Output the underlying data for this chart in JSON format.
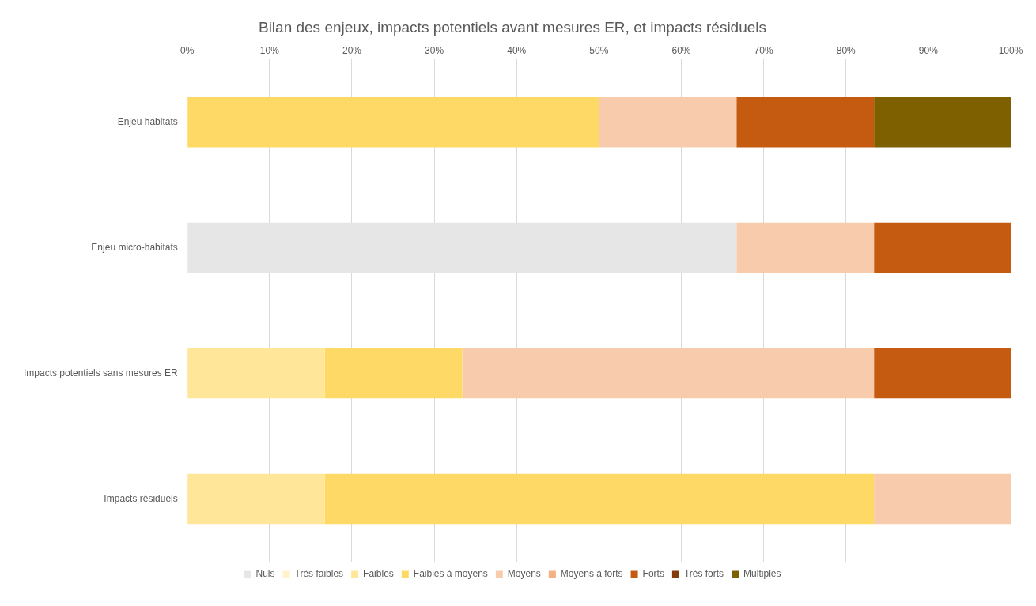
{
  "chart_data": {
    "type": "bar",
    "orientation": "horizontal",
    "stacked": true,
    "title": "Bilan des enjeux, impacts potentiels avant mesures ER, et impacts résiduels",
    "categories": [
      "Enjeu habitats",
      "Enjeu micro-habitats",
      "Impacts potentiels sans mesures ER",
      "Impacts résiduels"
    ],
    "series": [
      {
        "name": "Nuls",
        "color": "#e7e6e6",
        "values": [
          null,
          66.7,
          null,
          null
        ]
      },
      {
        "name": "Très faibles",
        "color": "#fff2cc",
        "values": [
          null,
          null,
          null,
          null
        ]
      },
      {
        "name": "Faibles",
        "color": "#ffe699",
        "values": [
          null,
          null,
          16.7,
          16.7
        ]
      },
      {
        "name": "Faibles à moyens",
        "color": "#ffd966",
        "values": [
          50,
          null,
          16.7,
          66.7
        ]
      },
      {
        "name": "Moyens",
        "color": "#f8cbad",
        "values": [
          16.7,
          16.7,
          50,
          16.6
        ]
      },
      {
        "name": "Moyens à forts",
        "color": "#f4b183",
        "values": [
          null,
          null,
          null,
          null
        ]
      },
      {
        "name": "Forts",
        "color": "#c55a11",
        "values": [
          16.7,
          16.6,
          16.6,
          null
        ]
      },
      {
        "name": "Très forts",
        "color": "#843c0c",
        "values": [
          null,
          null,
          null,
          null
        ]
      },
      {
        "name": "Multiples",
        "color": "#7f6000",
        "values": [
          16.6,
          null,
          null,
          null
        ]
      }
    ],
    "xlim": [
      0,
      100
    ],
    "xticks": [
      {
        "value": 0,
        "label": "0%"
      },
      {
        "value": 10,
        "label": "10%"
      },
      {
        "value": 20,
        "label": "20%"
      },
      {
        "value": 30,
        "label": "30%"
      },
      {
        "value": 40,
        "label": "40%"
      },
      {
        "value": 50,
        "label": "50%"
      },
      {
        "value": 60,
        "label": "60%"
      },
      {
        "value": 70,
        "label": "70%"
      },
      {
        "value": 80,
        "label": "80%"
      },
      {
        "value": 90,
        "label": "90%"
      },
      {
        "value": 100,
        "label": "100%"
      }
    ],
    "grid": "x",
    "legend": "bottom"
  }
}
